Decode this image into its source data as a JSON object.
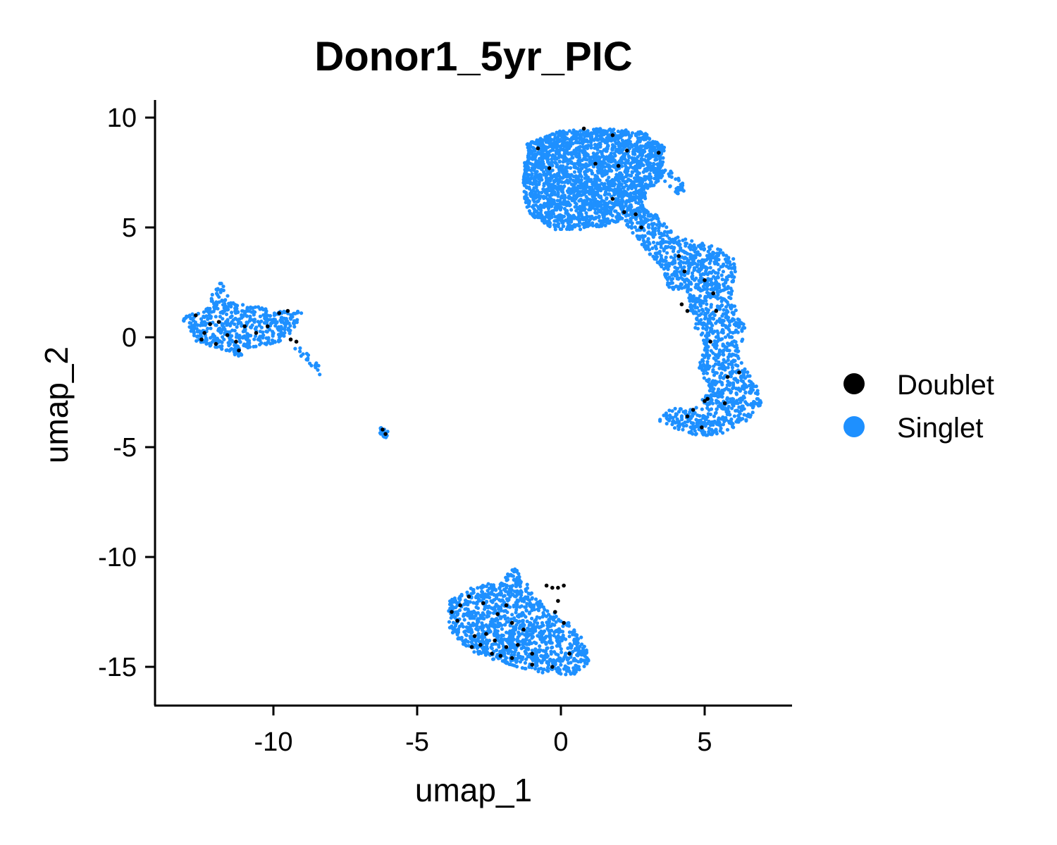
{
  "chart_data": {
    "type": "scatter",
    "title": "Donor1_5yr_PIC",
    "xlabel": "umap_1",
    "ylabel": "umap_2",
    "xlim": [
      -14.2,
      8.1
    ],
    "ylim": [
      -16.8,
      10.6
    ],
    "xticks": [
      -10,
      -5,
      0,
      5
    ],
    "xtick_labels": [
      "-10",
      "-5",
      "0",
      "5"
    ],
    "yticks": [
      -15,
      -10,
      -5,
      0,
      5,
      10
    ],
    "ytick_labels": [
      "-15",
      "-10",
      "-5",
      "0",
      "5",
      "10"
    ],
    "grid": false,
    "legend_position": "right",
    "series": [
      {
        "name": "Doublet",
        "color": "#000000",
        "values": [
          [
            0.8,
            9.5
          ],
          [
            1.8,
            9.2
          ],
          [
            -0.8,
            8.6
          ],
          [
            2.3,
            8.5
          ],
          [
            3.4,
            8.4
          ],
          [
            -0.4,
            7.7
          ],
          [
            1.2,
            7.9
          ],
          [
            2.0,
            7.8
          ],
          [
            1.8,
            6.3
          ],
          [
            2.2,
            5.7
          ],
          [
            2.6,
            5.6
          ],
          [
            2.8,
            5.0
          ],
          [
            4.1,
            3.7
          ],
          [
            4.3,
            3.0
          ],
          [
            5.0,
            2.6
          ],
          [
            5.3,
            2.0
          ],
          [
            4.2,
            1.5
          ],
          [
            4.4,
            1.2
          ],
          [
            5.4,
            1.2
          ],
          [
            5.2,
            -0.2
          ],
          [
            6.2,
            -1.6
          ],
          [
            5.8,
            -1.8
          ],
          [
            5.1,
            -2.8
          ],
          [
            5.0,
            -2.9
          ],
          [
            4.6,
            -3.3
          ],
          [
            4.4,
            -3.6
          ],
          [
            5.7,
            -3.0
          ],
          [
            4.9,
            -4.1
          ],
          [
            -12.7,
            1.0
          ],
          [
            -12.2,
            0.6
          ],
          [
            -11.9,
            0.7
          ],
          [
            -12.4,
            0.2
          ],
          [
            -11.6,
            0.1
          ],
          [
            -12.5,
            -0.1
          ],
          [
            -12.0,
            -0.3
          ],
          [
            -11.3,
            -0.2
          ],
          [
            -11.0,
            0.5
          ],
          [
            -10.6,
            0.2
          ],
          [
            -10.2,
            0.5
          ],
          [
            -9.8,
            1.1
          ],
          [
            -9.5,
            1.2
          ],
          [
            -9.4,
            -0.1
          ],
          [
            -9.2,
            -0.2
          ],
          [
            -11.2,
            -0.6
          ],
          [
            -6.2,
            -4.2
          ],
          [
            -6.1,
            -4.4
          ],
          [
            -0.5,
            -11.3
          ],
          [
            -0.3,
            -11.4
          ],
          [
            -0.1,
            -11.4
          ],
          [
            0.1,
            -11.3
          ],
          [
            -0.1,
            -12.0
          ],
          [
            -0.2,
            -12.5
          ],
          [
            -3.2,
            -11.8
          ],
          [
            -3.5,
            -12.2
          ],
          [
            -2.7,
            -12.1
          ],
          [
            -3.8,
            -12.5
          ],
          [
            -3.6,
            -12.9
          ],
          [
            -2.2,
            -12.6
          ],
          [
            -1.9,
            -12.2
          ],
          [
            -1.7,
            -13.0
          ],
          [
            -1.3,
            -13.3
          ],
          [
            -2.6,
            -13.5
          ],
          [
            -3.0,
            -13.6
          ],
          [
            -2.3,
            -13.8
          ],
          [
            -1.9,
            -14.1
          ],
          [
            -1.5,
            -14.0
          ],
          [
            -2.4,
            -14.4
          ],
          [
            -2.1,
            -14.5
          ],
          [
            -1.7,
            -14.6
          ],
          [
            -1.0,
            -14.4
          ],
          [
            -1.0,
            -14.9
          ],
          [
            -0.3,
            -15.0
          ],
          [
            0.3,
            -14.4
          ],
          [
            0.1,
            -13.0
          ],
          [
            -3.1,
            -14.1
          ],
          [
            -2.8,
            -14.0
          ]
        ]
      },
      {
        "name": "Singlet",
        "color": "#1E90FF",
        "values": []
      }
    ]
  },
  "legend": {
    "items": [
      {
        "label": "Doublet",
        "color": "#000000"
      },
      {
        "label": "Singlet",
        "color": "#1E90FF"
      }
    ]
  }
}
